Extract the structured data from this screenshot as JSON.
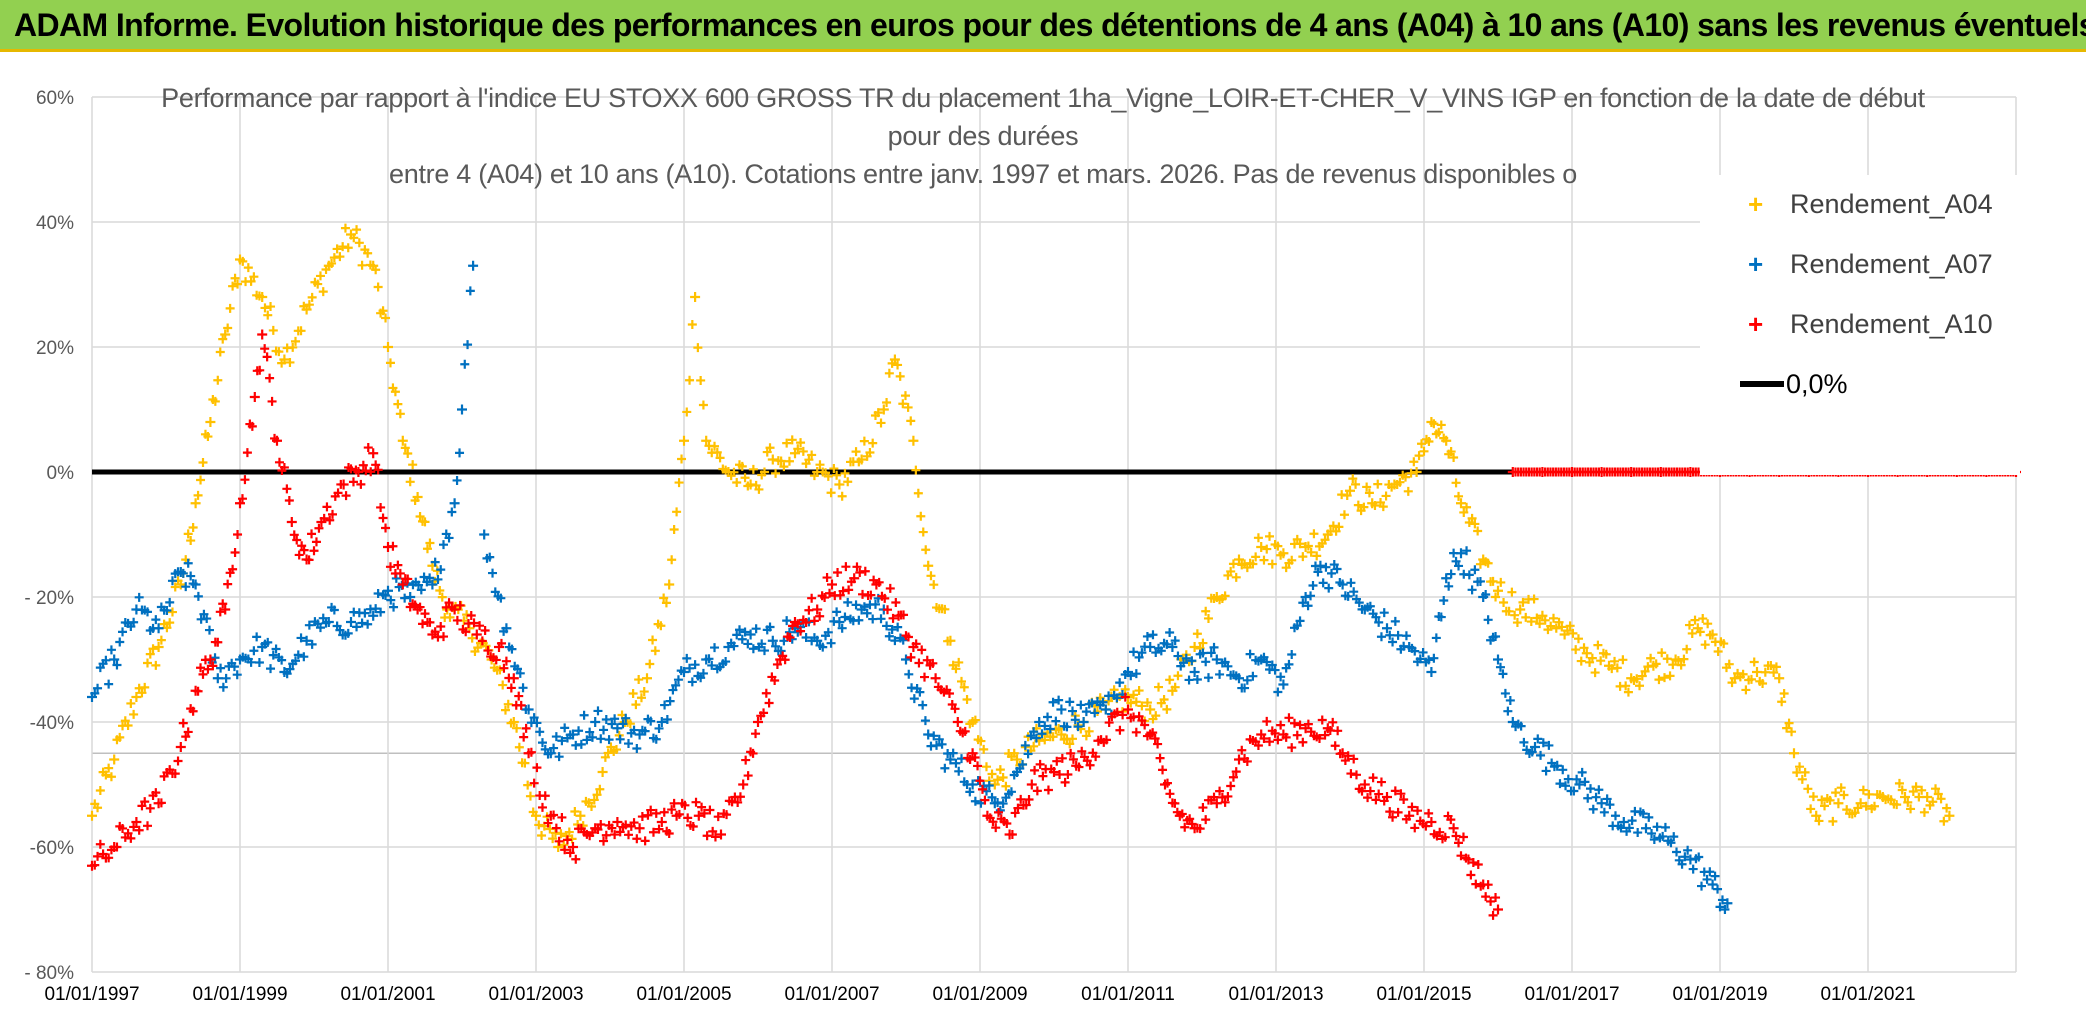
{
  "page": {
    "title": "ADAM Informe. Evolution historique des performances en euros pour des détentions de 4 ans (A04) à 10 ans (A10) sans les revenus éventuels"
  },
  "chart_data": {
    "type": "scatter",
    "title_lines": [
      "Performance par rapport à l'indice EU STOXX 600 GROSS TR  du placement 1ha_Vigne_LOIR-ET-CHER_V_VINS IGP en fonction de la date de début",
      "pour des durées",
      "entre 4 (A04) et 10 ans (A10). Cotations entre janv. 1997 et mars. 2026. Pas de revenus disponibles o"
    ],
    "y_axis": {
      "min": -80,
      "max": 60,
      "step": 20,
      "tick_labels": [
        "60%",
        "40%",
        "20%",
        "0%",
        "- 20%",
        "-40%",
        "-60%",
        "- 80%"
      ]
    },
    "x_axis": {
      "min_year": 1997.0,
      "max_year": 2023.0,
      "tick_labels": [
        "01/01/1997",
        "01/01/1999",
        "01/01/2001",
        "01/01/2003",
        "01/01/2005",
        "01/01/2007",
        "01/01/2009",
        "01/01/2011",
        "01/01/2013",
        "01/01/2015",
        "01/01/2017",
        "01/01/2019",
        "01/01/2021"
      ]
    },
    "grid": true,
    "legend_position": "right",
    "series": [
      {
        "name": "Rendement_A04",
        "color": "#ffc000",
        "marker": "plus",
        "points": [
          [
            1997.0,
            -55
          ],
          [
            1997.3,
            -46
          ],
          [
            1997.6,
            -36
          ],
          [
            1997.9,
            -28
          ],
          [
            1998.2,
            -18
          ],
          [
            1998.4,
            -5
          ],
          [
            1998.6,
            8
          ],
          [
            1998.8,
            22
          ],
          [
            1999.0,
            34
          ],
          [
            1999.3,
            28
          ],
          [
            1999.6,
            18
          ],
          [
            1999.9,
            26
          ],
          [
            2000.2,
            33
          ],
          [
            2000.5,
            38
          ],
          [
            2000.8,
            33
          ],
          [
            2001.0,
            20
          ],
          [
            2001.2,
            5
          ],
          [
            2001.4,
            -4
          ],
          [
            2001.6,
            -15
          ],
          [
            2001.8,
            -22
          ],
          [
            2002.1,
            -25
          ],
          [
            2002.4,
            -30
          ],
          [
            2002.7,
            -40
          ],
          [
            2003.0,
            -55
          ],
          [
            2003.3,
            -60
          ],
          [
            2003.6,
            -55
          ],
          [
            2003.9,
            -48
          ],
          [
            2004.2,
            -40
          ],
          [
            2004.5,
            -33
          ],
          [
            2004.8,
            -18
          ],
          [
            2005.0,
            5
          ],
          [
            2005.15,
            28
          ],
          [
            2005.3,
            5
          ],
          [
            2005.6,
            0
          ],
          [
            2005.9,
            -2
          ],
          [
            2006.2,
            2
          ],
          [
            2006.5,
            3
          ],
          [
            2006.8,
            0
          ],
          [
            2007.1,
            -2
          ],
          [
            2007.4,
            2
          ],
          [
            2007.7,
            10
          ],
          [
            2007.85,
            18
          ],
          [
            2008.1,
            5
          ],
          [
            2008.3,
            -15
          ],
          [
            2008.6,
            -27
          ],
          [
            2008.9,
            -40
          ],
          [
            2009.2,
            -50
          ],
          [
            2009.5,
            -46
          ],
          [
            2009.8,
            -43
          ],
          [
            2010.1,
            -42
          ],
          [
            2010.4,
            -40
          ],
          [
            2010.7,
            -38
          ],
          [
            2011.0,
            -36
          ],
          [
            2011.3,
            -38
          ],
          [
            2011.6,
            -35
          ],
          [
            2011.9,
            -28
          ],
          [
            2012.2,
            -20
          ],
          [
            2012.5,
            -14
          ],
          [
            2012.8,
            -12
          ],
          [
            2013.1,
            -13
          ],
          [
            2013.4,
            -12
          ],
          [
            2013.7,
            -10
          ],
          [
            2014.0,
            -3
          ],
          [
            2014.3,
            -5
          ],
          [
            2014.6,
            -2
          ],
          [
            2014.9,
            0
          ],
          [
            2015.1,
            8
          ],
          [
            2015.3,
            5
          ],
          [
            2015.5,
            -5
          ],
          [
            2015.8,
            -14
          ],
          [
            2016.0,
            -19
          ],
          [
            2016.3,
            -22
          ],
          [
            2016.6,
            -23
          ],
          [
            2016.9,
            -26
          ],
          [
            2017.2,
            -29
          ],
          [
            2017.5,
            -31
          ],
          [
            2017.8,
            -33
          ],
          [
            2018.1,
            -31
          ],
          [
            2018.4,
            -30
          ],
          [
            2018.7,
            -25
          ],
          [
            2018.9,
            -26
          ],
          [
            2019.2,
            -33
          ],
          [
            2019.5,
            -32
          ],
          [
            2019.8,
            -33
          ],
          [
            2020.0,
            -45
          ],
          [
            2020.3,
            -55
          ],
          [
            2020.6,
            -53
          ],
          [
            2020.9,
            -53
          ],
          [
            2021.2,
            -52
          ],
          [
            2021.5,
            -52
          ],
          [
            2021.8,
            -52
          ],
          [
            2022.1,
            -55
          ]
        ]
      },
      {
        "name": "Rendement_A07",
        "color": "#0070c0",
        "marker": "plus",
        "points": [
          [
            1997.0,
            -36
          ],
          [
            1997.3,
            -30
          ],
          [
            1997.6,
            -22
          ],
          [
            1997.9,
            -25
          ],
          [
            1998.2,
            -16
          ],
          [
            1998.4,
            -18
          ],
          [
            1998.7,
            -33
          ],
          [
            1999.0,
            -30
          ],
          [
            1999.3,
            -28
          ],
          [
            1999.6,
            -32
          ],
          [
            1999.9,
            -27
          ],
          [
            2000.2,
            -24
          ],
          [
            2000.5,
            -24
          ],
          [
            2000.8,
            -23
          ],
          [
            2001.0,
            -19
          ],
          [
            2001.3,
            -20
          ],
          [
            2001.6,
            -18
          ],
          [
            2001.9,
            -5
          ],
          [
            2002.0,
            10
          ],
          [
            2002.15,
            33
          ],
          [
            2002.3,
            -10
          ],
          [
            2002.6,
            -25
          ],
          [
            2002.9,
            -38
          ],
          [
            2003.2,
            -45
          ],
          [
            2003.5,
            -42
          ],
          [
            2003.8,
            -40
          ],
          [
            2004.1,
            -41
          ],
          [
            2004.4,
            -42
          ],
          [
            2004.7,
            -40
          ],
          [
            2005.0,
            -32
          ],
          [
            2005.3,
            -30
          ],
          [
            2005.6,
            -28
          ],
          [
            2005.9,
            -26
          ],
          [
            2006.2,
            -27
          ],
          [
            2006.5,
            -25
          ],
          [
            2006.8,
            -27
          ],
          [
            2007.1,
            -24
          ],
          [
            2007.4,
            -22
          ],
          [
            2007.7,
            -22
          ],
          [
            2008.0,
            -30
          ],
          [
            2008.3,
            -42
          ],
          [
            2008.6,
            -46
          ],
          [
            2008.9,
            -50
          ],
          [
            2009.2,
            -53
          ],
          [
            2009.5,
            -48
          ],
          [
            2009.8,
            -40
          ],
          [
            2010.1,
            -38
          ],
          [
            2010.4,
            -40
          ],
          [
            2010.7,
            -38
          ],
          [
            2011.0,
            -32
          ],
          [
            2011.3,
            -28
          ],
          [
            2011.6,
            -28
          ],
          [
            2011.9,
            -32
          ],
          [
            2012.2,
            -30
          ],
          [
            2012.5,
            -33
          ],
          [
            2012.8,
            -30
          ],
          [
            2013.1,
            -34
          ],
          [
            2013.4,
            -20
          ],
          [
            2013.6,
            -15
          ],
          [
            2013.9,
            -18
          ],
          [
            2014.2,
            -22
          ],
          [
            2014.5,
            -25
          ],
          [
            2014.8,
            -28
          ],
          [
            2015.1,
            -32
          ],
          [
            2015.3,
            -17
          ],
          [
            2015.5,
            -13
          ],
          [
            2015.8,
            -20
          ],
          [
            2016.0,
            -30
          ],
          [
            2016.2,
            -40
          ],
          [
            2016.5,
            -44
          ],
          [
            2016.8,
            -47
          ],
          [
            2017.1,
            -50
          ],
          [
            2017.4,
            -53
          ],
          [
            2017.7,
            -56
          ],
          [
            2018.0,
            -57
          ],
          [
            2018.3,
            -59
          ],
          [
            2018.6,
            -62
          ],
          [
            2018.9,
            -66
          ],
          [
            2019.1,
            -69
          ]
        ]
      },
      {
        "name": "Rendement_A10",
        "color": "#ff0000",
        "marker": "plus",
        "points": [
          [
            1997.0,
            -63
          ],
          [
            1997.3,
            -60
          ],
          [
            1997.6,
            -56
          ],
          [
            1997.9,
            -53
          ],
          [
            1998.2,
            -44
          ],
          [
            1998.4,
            -35
          ],
          [
            1998.6,
            -30
          ],
          [
            1998.8,
            -22
          ],
          [
            1999.0,
            -5
          ],
          [
            1999.2,
            12
          ],
          [
            1999.3,
            22
          ],
          [
            1999.5,
            5
          ],
          [
            1999.7,
            -8
          ],
          [
            1999.9,
            -14
          ],
          [
            2000.1,
            -8
          ],
          [
            2000.4,
            -2
          ],
          [
            2000.6,
            0
          ],
          [
            2000.8,
            3
          ],
          [
            2001.0,
            -12
          ],
          [
            2001.2,
            -18
          ],
          [
            2001.4,
            -22
          ],
          [
            2001.6,
            -26
          ],
          [
            2001.9,
            -22
          ],
          [
            2002.2,
            -26
          ],
          [
            2002.5,
            -28
          ],
          [
            2002.7,
            -33
          ],
          [
            2002.9,
            -45
          ],
          [
            2003.2,
            -55
          ],
          [
            2003.5,
            -60
          ],
          [
            2003.8,
            -57
          ],
          [
            2004.1,
            -56
          ],
          [
            2004.4,
            -57
          ],
          [
            2004.7,
            -56
          ],
          [
            2004.9,
            -55
          ],
          [
            2005.2,
            -55
          ],
          [
            2005.5,
            -58
          ],
          [
            2005.8,
            -50
          ],
          [
            2006.0,
            -40
          ],
          [
            2006.3,
            -30
          ],
          [
            2006.5,
            -24
          ],
          [
            2006.8,
            -22
          ],
          [
            2007.0,
            -18
          ],
          [
            2007.3,
            -17
          ],
          [
            2007.6,
            -18
          ],
          [
            2007.9,
            -23
          ],
          [
            2008.1,
            -28
          ],
          [
            2008.4,
            -33
          ],
          [
            2008.7,
            -40
          ],
          [
            2008.9,
            -45
          ],
          [
            2009.1,
            -55
          ],
          [
            2009.4,
            -58
          ],
          [
            2009.7,
            -50
          ],
          [
            2010.0,
            -48
          ],
          [
            2010.3,
            -47
          ],
          [
            2010.6,
            -43
          ],
          [
            2011.0,
            -38
          ],
          [
            2011.3,
            -42
          ],
          [
            2011.5,
            -50
          ],
          [
            2011.7,
            -55
          ],
          [
            2011.9,
            -57
          ],
          [
            2012.2,
            -53
          ],
          [
            2012.5,
            -46
          ],
          [
            2012.8,
            -42
          ],
          [
            2013.1,
            -42
          ],
          [
            2013.4,
            -41
          ],
          [
            2013.7,
            -41
          ],
          [
            2013.9,
            -45
          ],
          [
            2014.2,
            -50
          ],
          [
            2014.5,
            -52
          ],
          [
            2014.8,
            -55
          ],
          [
            2015.1,
            -56
          ],
          [
            2015.4,
            -57
          ],
          [
            2015.6,
            -62
          ],
          [
            2015.8,
            -66
          ],
          [
            2016.0,
            -70
          ],
          [
            2016.2,
            0
          ],
          [
            2016.6,
            0
          ],
          [
            2017.0,
            0
          ],
          [
            2017.4,
            0
          ],
          [
            2017.8,
            0
          ],
          [
            2018.2,
            0
          ],
          [
            2018.6,
            0
          ],
          [
            2019.0,
            0
          ],
          [
            2019.4,
            0
          ],
          [
            2019.8,
            0
          ],
          [
            2020.2,
            0
          ],
          [
            2020.6,
            0
          ],
          [
            2021.0,
            0
          ],
          [
            2021.4,
            0
          ],
          [
            2021.8,
            0
          ],
          [
            2022.2,
            0
          ],
          [
            2022.6,
            0
          ],
          [
            2023.0,
            0
          ]
        ]
      },
      {
        "name": "0,0%",
        "color": "#000000",
        "type": "line",
        "y": 0
      }
    ]
  }
}
